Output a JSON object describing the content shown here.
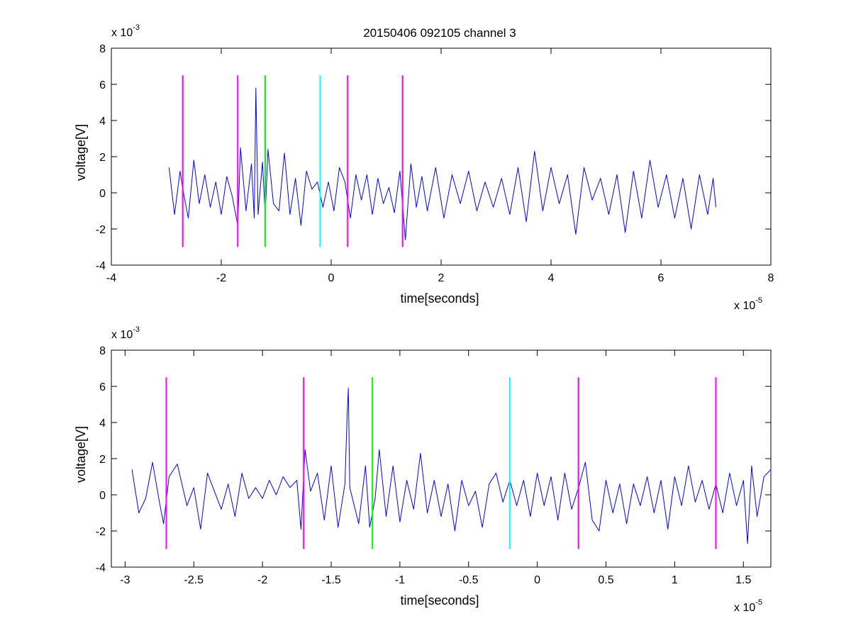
{
  "figure": {
    "background": "#ffffff",
    "title": "20150406 092105 channel 3"
  },
  "chart_data": [
    {
      "type": "line",
      "title": "20150406 092105 channel 3",
      "xlabel": "time[seconds]",
      "ylabel": "voltage[V]",
      "x_multiplier": {
        "base": "x 10",
        "exponent": "-5"
      },
      "y_multiplier": {
        "base": "x 10",
        "exponent": "-3"
      },
      "xlim": [
        -4,
        8
      ],
      "ylim": [
        -4,
        8
      ],
      "x_ticks": [
        -4,
        -2,
        0,
        2,
        4,
        6,
        8
      ],
      "x_tick_labels": [
        "-4",
        "-2",
        "0",
        "2",
        "4",
        "6",
        "8"
      ],
      "y_ticks": [
        -4,
        -2,
        0,
        2,
        4,
        6,
        8
      ],
      "y_tick_labels": [
        "-4",
        "-2",
        "0",
        "2",
        "4",
        "6",
        "8"
      ],
      "grid": false,
      "series": [
        {
          "color": "#0000ff",
          "x_range": [
            -2.95,
            7.0
          ],
          "points": [
            [
              -2.95,
              1.4
            ],
            [
              -2.85,
              -1.2
            ],
            [
              -2.75,
              1.2
            ],
            [
              -2.7,
              0.2
            ],
            [
              -2.6,
              -1.4
            ],
            [
              -2.5,
              1.8
            ],
            [
              -2.4,
              -0.6
            ],
            [
              -2.3,
              1.0
            ],
            [
              -2.2,
              -0.8
            ],
            [
              -2.1,
              0.6
            ],
            [
              -2.0,
              -1.2
            ],
            [
              -1.9,
              0.9
            ],
            [
              -1.8,
              -0.2
            ],
            [
              -1.7,
              -1.8
            ],
            [
              -1.65,
              2.5
            ],
            [
              -1.55,
              -1.0
            ],
            [
              -1.45,
              1.6
            ],
            [
              -1.4,
              -1.4
            ],
            [
              -1.37,
              5.8
            ],
            [
              -1.33,
              -1.2
            ],
            [
              -1.25,
              1.7
            ],
            [
              -1.2,
              -1.2
            ],
            [
              -1.15,
              2.4
            ],
            [
              -1.05,
              -0.6
            ],
            [
              -0.95,
              -1.0
            ],
            [
              -0.85,
              2.2
            ],
            [
              -0.75,
              -1.2
            ],
            [
              -0.65,
              0.8
            ],
            [
              -0.55,
              -1.8
            ],
            [
              -0.45,
              1.2
            ],
            [
              -0.35,
              0.2
            ],
            [
              -0.25,
              0.6
            ],
            [
              -0.15,
              -0.8
            ],
            [
              -0.05,
              0.6
            ],
            [
              0.05,
              -1.0
            ],
            [
              0.15,
              1.4
            ],
            [
              0.25,
              0.6
            ],
            [
              0.35,
              -1.4
            ],
            [
              0.45,
              1.0
            ],
            [
              0.55,
              -0.4
            ],
            [
              0.65,
              1.0
            ],
            [
              0.75,
              -1.2
            ],
            [
              0.85,
              0.8
            ],
            [
              0.95,
              -0.6
            ],
            [
              1.05,
              0.3
            ],
            [
              1.15,
              -1.1
            ],
            [
              1.25,
              1.2
            ],
            [
              1.35,
              -2.6
            ],
            [
              1.45,
              1.6
            ],
            [
              1.55,
              -0.8
            ],
            [
              1.65,
              0.9
            ],
            [
              1.75,
              -1.0
            ],
            [
              1.9,
              1.4
            ],
            [
              2.05,
              -1.4
            ],
            [
              2.2,
              1.0
            ],
            [
              2.35,
              -0.6
            ],
            [
              2.5,
              1.2
            ],
            [
              2.65,
              -1.0
            ],
            [
              2.8,
              0.6
            ],
            [
              2.95,
              -0.8
            ],
            [
              3.1,
              0.8
            ],
            [
              3.25,
              -1.2
            ],
            [
              3.4,
              1.4
            ],
            [
              3.55,
              -1.6
            ],
            [
              3.7,
              2.3
            ],
            [
              3.85,
              -1.0
            ],
            [
              4.0,
              1.4
            ],
            [
              4.15,
              -0.6
            ],
            [
              4.3,
              1.0
            ],
            [
              4.45,
              -2.3
            ],
            [
              4.6,
              1.4
            ],
            [
              4.75,
              -0.4
            ],
            [
              4.9,
              0.8
            ],
            [
              5.05,
              -1.2
            ],
            [
              5.2,
              1.0
            ],
            [
              5.35,
              -2.2
            ],
            [
              5.5,
              1.2
            ],
            [
              5.65,
              -1.4
            ],
            [
              5.8,
              1.8
            ],
            [
              5.95,
              -0.8
            ],
            [
              6.1,
              1.0
            ],
            [
              6.25,
              -1.4
            ],
            [
              6.4,
              0.8
            ],
            [
              6.55,
              -2.0
            ],
            [
              6.7,
              1.0
            ],
            [
              6.85,
              -1.2
            ],
            [
              6.95,
              0.8
            ],
            [
              7.0,
              -0.8
            ]
          ]
        }
      ],
      "markers": [
        {
          "x": -2.7,
          "y0": -3.0,
          "y1": 6.5,
          "color": "#ff00ff"
        },
        {
          "x": -1.7,
          "y0": -3.0,
          "y1": 6.5,
          "color": "#ff00ff"
        },
        {
          "x": -1.2,
          "y0": -3.0,
          "y1": 6.5,
          "color": "#00ff00"
        },
        {
          "x": -0.2,
          "y0": -3.0,
          "y1": 6.5,
          "color": "#00ffff"
        },
        {
          "x": 0.3,
          "y0": -3.0,
          "y1": 6.5,
          "color": "#ff00ff"
        },
        {
          "x": 1.3,
          "y0": -3.0,
          "y1": 6.5,
          "color": "#ff00ff"
        }
      ]
    },
    {
      "type": "line",
      "title": "",
      "xlabel": "time[seconds]",
      "ylabel": "voltage[V]",
      "x_multiplier": {
        "base": "x 10",
        "exponent": "-5"
      },
      "y_multiplier": {
        "base": "x 10",
        "exponent": "-3"
      },
      "xlim": [
        -3.1,
        1.7
      ],
      "ylim": [
        -4,
        8
      ],
      "x_ticks": [
        -3,
        -2.5,
        -2,
        -1.5,
        -1,
        -0.5,
        0,
        0.5,
        1,
        1.5
      ],
      "x_tick_labels": [
        "-3",
        "-2.5",
        "-2",
        "-1.5",
        "-1",
        "-0.5",
        "0",
        "0.5",
        "1",
        "1.5"
      ],
      "y_ticks": [
        -4,
        -2,
        0,
        2,
        4,
        6,
        8
      ],
      "y_tick_labels": [
        "-4",
        "-2",
        "0",
        "2",
        "4",
        "6",
        "8"
      ],
      "grid": false,
      "series": [
        {
          "color": "#0000ff",
          "x_range": [
            -2.95,
            1.7
          ],
          "points": [
            [
              -2.95,
              1.4
            ],
            [
              -2.9,
              -1.0
            ],
            [
              -2.85,
              -0.2
            ],
            [
              -2.8,
              1.8
            ],
            [
              -2.75,
              -0.4
            ],
            [
              -2.72,
              -1.6
            ],
            [
              -2.68,
              1.0
            ],
            [
              -2.62,
              1.7
            ],
            [
              -2.55,
              -0.6
            ],
            [
              -2.5,
              0.4
            ],
            [
              -2.45,
              -1.9
            ],
            [
              -2.4,
              1.2
            ],
            [
              -2.35,
              0.2
            ],
            [
              -2.3,
              -0.8
            ],
            [
              -2.25,
              0.6
            ],
            [
              -2.2,
              -1.2
            ],
            [
              -2.15,
              1.2
            ],
            [
              -2.1,
              -0.2
            ],
            [
              -2.05,
              0.4
            ],
            [
              -2.0,
              -0.2
            ],
            [
              -1.95,
              0.8
            ],
            [
              -1.9,
              0.0
            ],
            [
              -1.85,
              1.0
            ],
            [
              -1.8,
              0.4
            ],
            [
              -1.75,
              0.8
            ],
            [
              -1.72,
              -1.9
            ],
            [
              -1.69,
              2.5
            ],
            [
              -1.65,
              0.2
            ],
            [
              -1.6,
              1.2
            ],
            [
              -1.55,
              -1.4
            ],
            [
              -1.5,
              1.6
            ],
            [
              -1.45,
              -1.8
            ],
            [
              -1.4,
              0.6
            ],
            [
              -1.385,
              4.2
            ],
            [
              -1.375,
              5.9
            ],
            [
              -1.365,
              0.4
            ],
            [
              -1.3,
              -1.6
            ],
            [
              -1.25,
              1.6
            ],
            [
              -1.22,
              -1.8
            ],
            [
              -1.18,
              -0.2
            ],
            [
              -1.15,
              2.5
            ],
            [
              -1.1,
              -1.2
            ],
            [
              -1.05,
              1.6
            ],
            [
              -1.0,
              -1.5
            ],
            [
              -0.95,
              0.8
            ],
            [
              -0.9,
              -0.8
            ],
            [
              -0.85,
              2.3
            ],
            [
              -0.8,
              -1.0
            ],
            [
              -0.75,
              0.8
            ],
            [
              -0.7,
              -1.2
            ],
            [
              -0.65,
              0.6
            ],
            [
              -0.6,
              -2.0
            ],
            [
              -0.55,
              0.8
            ],
            [
              -0.5,
              -0.6
            ],
            [
              -0.45,
              0.2
            ],
            [
              -0.4,
              -1.8
            ],
            [
              -0.35,
              0.6
            ],
            [
              -0.3,
              1.2
            ],
            [
              -0.25,
              -0.4
            ],
            [
              -0.2,
              0.8
            ],
            [
              -0.15,
              -0.6
            ],
            [
              -0.1,
              0.8
            ],
            [
              -0.05,
              -1.2
            ],
            [
              0.0,
              1.2
            ],
            [
              0.05,
              -0.6
            ],
            [
              0.1,
              1.0
            ],
            [
              0.15,
              -1.4
            ],
            [
              0.2,
              1.2
            ],
            [
              0.25,
              -0.8
            ],
            [
              0.3,
              0.4
            ],
            [
              0.35,
              1.8
            ],
            [
              0.4,
              -1.4
            ],
            [
              0.45,
              -2.0
            ],
            [
              0.5,
              0.8
            ],
            [
              0.55,
              -1.0
            ],
            [
              0.6,
              0.6
            ],
            [
              0.65,
              -1.6
            ],
            [
              0.7,
              0.6
            ],
            [
              0.75,
              -0.6
            ],
            [
              0.8,
              1.0
            ],
            [
              0.85,
              -1.0
            ],
            [
              0.9,
              0.8
            ],
            [
              0.95,
              -1.9
            ],
            [
              1.0,
              1.0
            ],
            [
              1.05,
              -0.6
            ],
            [
              1.1,
              1.6
            ],
            [
              1.15,
              -0.4
            ],
            [
              1.2,
              0.8
            ],
            [
              1.25,
              -0.8
            ],
            [
              1.3,
              0.6
            ],
            [
              1.35,
              -1.0
            ],
            [
              1.4,
              1.2
            ],
            [
              1.45,
              -0.6
            ],
            [
              1.5,
              0.8
            ],
            [
              1.53,
              -2.7
            ],
            [
              1.56,
              1.6
            ],
            [
              1.6,
              -1.2
            ],
            [
              1.65,
              1.0
            ],
            [
              1.7,
              1.4
            ]
          ]
        }
      ],
      "markers": [
        {
          "x": -2.7,
          "y0": -3.0,
          "y1": 6.5,
          "color": "#ff00ff"
        },
        {
          "x": -1.7,
          "y0": -3.0,
          "y1": 6.5,
          "color": "#ff00ff"
        },
        {
          "x": -1.2,
          "y0": -3.0,
          "y1": 6.5,
          "color": "#00ff00"
        },
        {
          "x": -0.2,
          "y0": -3.0,
          "y1": 6.5,
          "color": "#00ffff"
        },
        {
          "x": 0.3,
          "y0": -3.0,
          "y1": 6.5,
          "color": "#ff00ff"
        },
        {
          "x": 1.3,
          "y0": -3.0,
          "y1": 6.5,
          "color": "#ff00ff"
        }
      ]
    }
  ]
}
